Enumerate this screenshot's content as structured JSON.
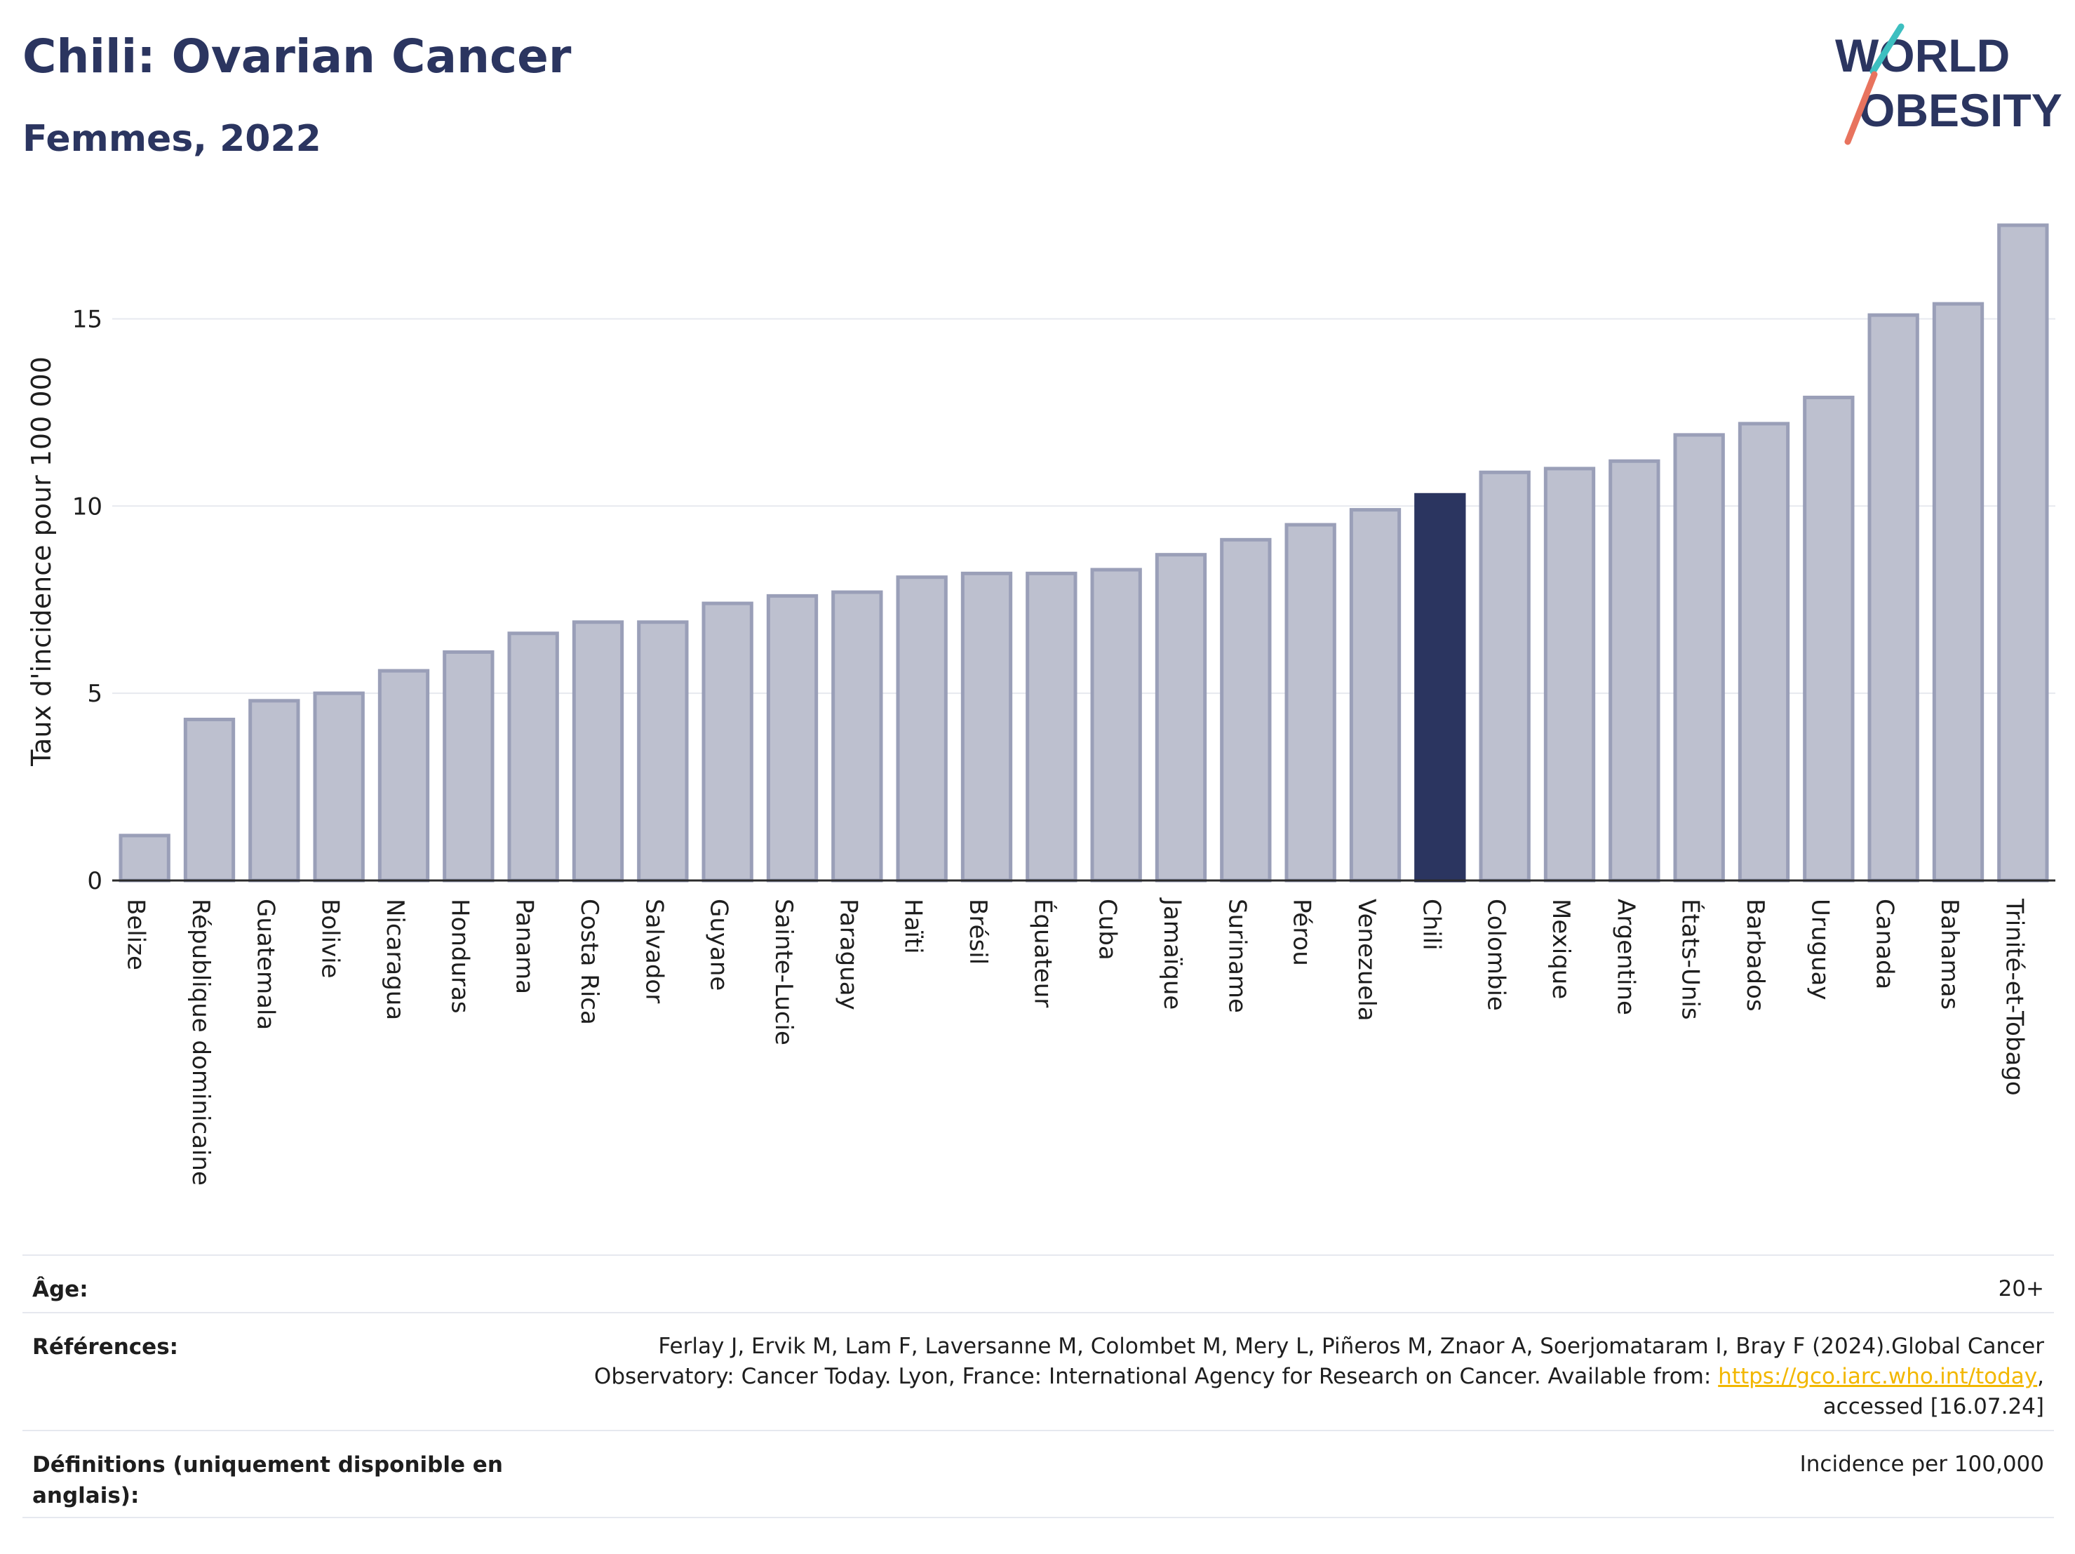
{
  "header": {
    "title": "Chili: Ovarian Cancer",
    "subtitle": "Femmes, 2022"
  },
  "logo": {
    "line1": "WORLD",
    "line2": "OBESITY",
    "colors": {
      "navy": "#2b3560",
      "teal": "#3dbfc0",
      "coral": "#e8735e"
    }
  },
  "chart_data": {
    "type": "bar",
    "ylabel": "Taux d'incidence pour 100 000",
    "ylim": [
      0,
      17.8
    ],
    "yticks": [
      0,
      5,
      10,
      15
    ],
    "grid": true,
    "highlight": "Chili",
    "colors": {
      "bar": "#bdc0cf",
      "bar_edge": "#9a9fb8",
      "highlight": "#2b3560"
    },
    "categories": [
      "Belize",
      "République dominicaine",
      "Guatemala",
      "Bolivie",
      "Nicaragua",
      "Honduras",
      "Panama",
      "Costa Rica",
      "Salvador",
      "Guyane",
      "Sainte-Lucie",
      "Paraguay",
      "Haïti",
      "Brésil",
      "Équateur",
      "Cuba",
      "Jamaïque",
      "Suriname",
      "Pérou",
      "Venezuela",
      "Chili",
      "Colombie",
      "Mexique",
      "Argentine",
      "États-Unis",
      "Barbados",
      "Uruguay",
      "Canada",
      "Bahamas",
      "Trinité-et-Tobago"
    ],
    "values": [
      1.2,
      4.3,
      4.8,
      5.0,
      5.6,
      6.1,
      6.6,
      6.9,
      6.9,
      7.4,
      7.6,
      7.7,
      8.1,
      8.2,
      8.2,
      8.3,
      8.7,
      9.1,
      9.5,
      9.9,
      10.3,
      10.9,
      11.0,
      11.2,
      11.9,
      12.2,
      12.9,
      15.1,
      15.4,
      17.5
    ]
  },
  "footer": {
    "age_label": "Âge:",
    "age_value": "20+",
    "refs_label": "Références:",
    "refs_text_1": "Ferlay J, Ervik M, Lam F, Laversanne M, Colombet M, Mery L, Piñeros M, Znaor A, Soerjomataram I, Bray F (2024).Global Cancer Observatory: Cancer Today. Lyon, France: International Agency for Research on Cancer. Available from: ",
    "refs_link": "https://gco.iarc.who.int/today",
    "refs_text_2": ", accessed [16.07.24]",
    "defs_label": "Définitions (uniquement disponible en anglais):",
    "defs_value": "Incidence per 100,000"
  }
}
